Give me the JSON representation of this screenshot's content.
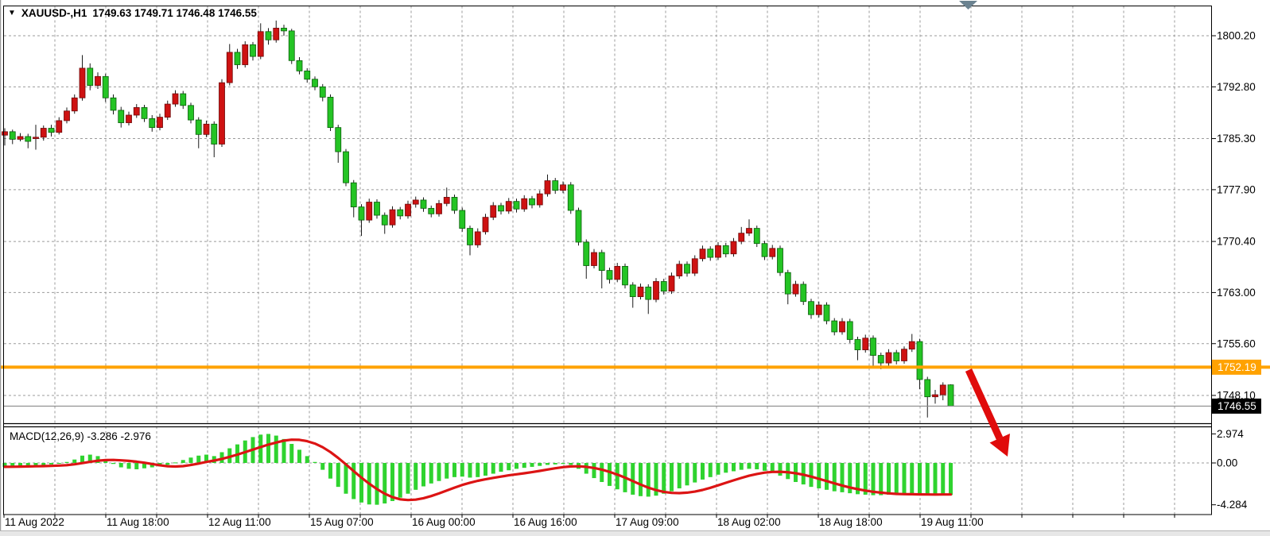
{
  "window": {
    "title_symbol": "XAUUSD-,H1",
    "title_quote": "1749.63 1749.71 1746.48 1746.55",
    "macd_label": "MACD(12,26,9) -3.286 -2.976"
  },
  "chart_data": {
    "type": "candlestick",
    "symbol": "XAUUSD-",
    "timeframe": "H1",
    "last_ohlc": {
      "open": 1749.63,
      "high": 1749.71,
      "low": 1746.48,
      "close": 1746.55
    },
    "price_axis_ticks": [
      1800.2,
      1792.8,
      1785.3,
      1777.9,
      1770.4,
      1763.0,
      1755.6,
      1748.1
    ],
    "time_labels": [
      "11 Aug 2022",
      "11 Aug 18:00",
      "12 Aug 11:00",
      "15 Aug 07:00",
      "16 Aug 00:00",
      "16 Aug 16:00",
      "17 Aug 09:00",
      "18 Aug 02:00",
      "18 Aug 18:00",
      "19 Aug 11:00"
    ],
    "horizontal_line_price": "1752.19",
    "current_price": "1746.55",
    "grid_on": true,
    "bars": [
      [
        1785.8,
        1786.8,
        1784.3,
        1786.3
      ],
      [
        1786.3,
        1786.6,
        1784.5,
        1785.2
      ],
      [
        1785.2,
        1786.1,
        1784.9,
        1785.6
      ],
      [
        1785.6,
        1786.0,
        1783.9,
        1784.9
      ],
      [
        1785.3,
        1787.3,
        1783.7,
        1785.5
      ],
      [
        1785.5,
        1787.2,
        1785.0,
        1786.8
      ],
      [
        1786.8,
        1787.3,
        1785.6,
        1786.2
      ],
      [
        1786.2,
        1788.4,
        1785.9,
        1787.9
      ],
      [
        1787.9,
        1789.8,
        1787.5,
        1789.3
      ],
      [
        1789.3,
        1791.7,
        1788.9,
        1791.2
      ],
      [
        1791.2,
        1797.4,
        1790.8,
        1795.5
      ],
      [
        1795.5,
        1796.2,
        1792.3,
        1793.0
      ],
      [
        1793.0,
        1794.9,
        1792.5,
        1794.3
      ],
      [
        1794.3,
        1794.7,
        1790.6,
        1791.2
      ],
      [
        1791.2,
        1791.7,
        1788.8,
        1789.4
      ],
      [
        1789.4,
        1789.9,
        1786.9,
        1787.6
      ],
      [
        1787.6,
        1789.2,
        1787.2,
        1788.7
      ],
      [
        1788.7,
        1790.3,
        1788.3,
        1789.8
      ],
      [
        1789.8,
        1790.2,
        1787.7,
        1788.2
      ],
      [
        1788.2,
        1788.7,
        1786.3,
        1786.9
      ],
      [
        1786.9,
        1788.9,
        1786.5,
        1788.4
      ],
      [
        1788.4,
        1790.8,
        1788.0,
        1790.3
      ],
      [
        1790.3,
        1792.3,
        1789.9,
        1791.8
      ],
      [
        1791.8,
        1792.2,
        1789.6,
        1790.1
      ],
      [
        1790.1,
        1790.5,
        1787.5,
        1788.0
      ],
      [
        1788.0,
        1788.4,
        1783.9,
        1785.9
      ],
      [
        1785.9,
        1787.9,
        1785.5,
        1787.4
      ],
      [
        1787.4,
        1787.8,
        1782.6,
        1784.5
      ],
      [
        1784.5,
        1793.9,
        1784.1,
        1793.4
      ],
      [
        1793.4,
        1799.0,
        1793.0,
        1797.8
      ],
      [
        1797.8,
        1798.3,
        1795.4,
        1796.0
      ],
      [
        1796.0,
        1799.4,
        1795.6,
        1798.9
      ],
      [
        1798.9,
        1799.3,
        1796.6,
        1797.2
      ],
      [
        1797.2,
        1802.0,
        1796.8,
        1800.8
      ],
      [
        1800.8,
        1801.3,
        1798.9,
        1799.6
      ],
      [
        1799.6,
        1802.4,
        1799.2,
        1801.3
      ],
      [
        1801.3,
        1801.8,
        1800.2,
        1800.9
      ],
      [
        1800.9,
        1801.2,
        1796.1,
        1796.6
      ],
      [
        1796.6,
        1797.1,
        1794.6,
        1795.1
      ],
      [
        1795.1,
        1795.5,
        1793.4,
        1793.9
      ],
      [
        1793.9,
        1794.3,
        1792.3,
        1792.8
      ],
      [
        1792.8,
        1793.2,
        1790.7,
        1791.3
      ],
      [
        1791.3,
        1791.7,
        1786.4,
        1786.9
      ],
      [
        1786.9,
        1787.3,
        1781.8,
        1783.4
      ],
      [
        1783.4,
        1783.8,
        1778.4,
        1778.9
      ],
      [
        1778.9,
        1779.3,
        1773.9,
        1775.4
      ],
      [
        1775.4,
        1775.8,
        1771.2,
        1773.5
      ],
      [
        1773.5,
        1776.6,
        1773.1,
        1776.1
      ],
      [
        1776.1,
        1776.5,
        1773.7,
        1774.2
      ],
      [
        1774.2,
        1774.6,
        1771.5,
        1772.8
      ],
      [
        1772.8,
        1775.5,
        1772.4,
        1775.0
      ],
      [
        1775.0,
        1775.4,
        1773.6,
        1774.1
      ],
      [
        1774.1,
        1776.3,
        1773.7,
        1775.8
      ],
      [
        1775.8,
        1776.9,
        1775.3,
        1776.4
      ],
      [
        1776.4,
        1776.8,
        1774.7,
        1775.2
      ],
      [
        1775.2,
        1775.6,
        1773.9,
        1774.4
      ],
      [
        1774.4,
        1776.4,
        1774.0,
        1775.9
      ],
      [
        1775.9,
        1778.2,
        1775.5,
        1776.8
      ],
      [
        1776.8,
        1777.2,
        1774.4,
        1774.9
      ],
      [
        1774.9,
        1775.3,
        1771.8,
        1772.3
      ],
      [
        1772.3,
        1772.7,
        1768.4,
        1769.9
      ],
      [
        1769.9,
        1772.3,
        1769.5,
        1771.8
      ],
      [
        1771.8,
        1774.4,
        1771.4,
        1773.9
      ],
      [
        1773.9,
        1776.1,
        1773.5,
        1775.6
      ],
      [
        1775.6,
        1776.0,
        1774.3,
        1774.8
      ],
      [
        1774.8,
        1776.7,
        1774.4,
        1776.2
      ],
      [
        1776.2,
        1776.6,
        1774.6,
        1775.1
      ],
      [
        1775.1,
        1777.1,
        1774.7,
        1776.6
      ],
      [
        1776.6,
        1777.0,
        1775.2,
        1775.7
      ],
      [
        1775.7,
        1777.8,
        1775.3,
        1777.3
      ],
      [
        1777.3,
        1780.1,
        1776.9,
        1779.2
      ],
      [
        1779.2,
        1779.6,
        1777.3,
        1777.8
      ],
      [
        1777.8,
        1779.1,
        1777.4,
        1778.6
      ],
      [
        1778.6,
        1779.0,
        1774.4,
        1774.9
      ],
      [
        1774.9,
        1775.3,
        1769.8,
        1770.3
      ],
      [
        1770.3,
        1770.7,
        1765.0,
        1766.9
      ],
      [
        1766.9,
        1769.3,
        1766.5,
        1768.8
      ],
      [
        1768.8,
        1769.2,
        1763.6,
        1766.2
      ],
      [
        1766.2,
        1766.6,
        1764.3,
        1764.9
      ],
      [
        1764.9,
        1767.3,
        1764.5,
        1766.8
      ],
      [
        1766.8,
        1767.2,
        1763.6,
        1764.1
      ],
      [
        1764.1,
        1764.5,
        1760.8,
        1762.4
      ],
      [
        1762.4,
        1764.3,
        1762.0,
        1763.8
      ],
      [
        1763.8,
        1764.2,
        1759.9,
        1762.0
      ],
      [
        1762.0,
        1765.1,
        1761.6,
        1764.6
      ],
      [
        1764.6,
        1765.0,
        1762.7,
        1763.2
      ],
      [
        1763.2,
        1765.9,
        1762.8,
        1765.4
      ],
      [
        1765.4,
        1767.6,
        1765.0,
        1767.1
      ],
      [
        1767.1,
        1767.5,
        1765.3,
        1765.8
      ],
      [
        1765.8,
        1768.4,
        1765.4,
        1767.9
      ],
      [
        1767.9,
        1769.8,
        1767.5,
        1769.3
      ],
      [
        1769.3,
        1769.7,
        1767.6,
        1768.1
      ],
      [
        1768.1,
        1770.3,
        1767.7,
        1769.8
      ],
      [
        1769.8,
        1770.2,
        1768.1,
        1768.6
      ],
      [
        1768.6,
        1770.9,
        1768.2,
        1770.4
      ],
      [
        1770.4,
        1772.5,
        1770.0,
        1771.6
      ],
      [
        1771.6,
        1773.6,
        1771.2,
        1772.3
      ],
      [
        1772.3,
        1772.7,
        1769.6,
        1770.1
      ],
      [
        1770.1,
        1770.5,
        1767.7,
        1768.2
      ],
      [
        1768.2,
        1769.9,
        1767.8,
        1769.4
      ],
      [
        1769.4,
        1769.8,
        1765.4,
        1765.9
      ],
      [
        1765.9,
        1766.3,
        1761.3,
        1762.8
      ],
      [
        1762.8,
        1764.7,
        1762.4,
        1764.2
      ],
      [
        1764.2,
        1764.6,
        1761.2,
        1761.7
      ],
      [
        1761.7,
        1762.1,
        1759.2,
        1759.8
      ],
      [
        1759.8,
        1761.7,
        1759.4,
        1761.2
      ],
      [
        1761.2,
        1761.6,
        1758.4,
        1758.9
      ],
      [
        1758.9,
        1759.3,
        1756.8,
        1757.3
      ],
      [
        1757.3,
        1759.3,
        1756.9,
        1758.8
      ],
      [
        1758.8,
        1759.2,
        1755.7,
        1756.2
      ],
      [
        1756.2,
        1756.6,
        1753.2,
        1754.7
      ],
      [
        1754.7,
        1756.9,
        1754.3,
        1756.4
      ],
      [
        1756.4,
        1756.8,
        1752.1,
        1753.9
      ],
      [
        1753.9,
        1754.3,
        1751.9,
        1752.8
      ],
      [
        1752.8,
        1754.8,
        1752.4,
        1754.3
      ],
      [
        1754.3,
        1754.7,
        1752.6,
        1753.1
      ],
      [
        1753.1,
        1755.2,
        1752.7,
        1754.8
      ],
      [
        1754.8,
        1757.0,
        1754.4,
        1755.9
      ],
      [
        1755.9,
        1756.3,
        1749.0,
        1750.4
      ],
      [
        1750.4,
        1750.8,
        1744.9,
        1747.9
      ],
      [
        1747.9,
        1748.9,
        1746.9,
        1748.2
      ],
      [
        1748.2,
        1750.0,
        1747.4,
        1749.6
      ],
      [
        1749.63,
        1749.71,
        1746.48,
        1746.55
      ]
    ],
    "macd": {
      "params": "12,26,9",
      "value_label": "-3.286",
      "signal_label": "-2.976",
      "axis_ticks": [
        "2.974",
        "0.00",
        "-4.284"
      ],
      "values": [
        -0.4,
        -0.38,
        -0.35,
        -0.3,
        -0.28,
        -0.22,
        -0.15,
        -0.05,
        0.1,
        0.35,
        0.75,
        0.85,
        0.7,
        0.3,
        -0.1,
        -0.45,
        -0.6,
        -0.65,
        -0.55,
        -0.45,
        -0.35,
        -0.2,
        0.05,
        0.3,
        0.55,
        0.75,
        0.85,
        0.7,
        1.1,
        1.5,
        1.9,
        2.3,
        2.65,
        2.9,
        2.97,
        2.8,
        2.45,
        1.95,
        1.35,
        0.7,
        0.1,
        -0.7,
        -1.6,
        -2.45,
        -3.15,
        -3.7,
        -4.05,
        -4.25,
        -4.28,
        -4.15,
        -3.9,
        -3.55,
        -3.15,
        -2.75,
        -2.4,
        -2.1,
        -1.85,
        -1.6,
        -1.45,
        -1.4,
        -1.5,
        -1.45,
        -1.3,
        -1.1,
        -0.9,
        -0.75,
        -0.6,
        -0.5,
        -0.4,
        -0.3,
        -0.2,
        -0.15,
        -0.1,
        -0.2,
        -0.6,
        -1.1,
        -1.55,
        -1.95,
        -2.35,
        -2.7,
        -3.0,
        -3.25,
        -3.4,
        -3.45,
        -3.35,
        -3.15,
        -2.9,
        -2.6,
        -2.3,
        -2.0,
        -1.7,
        -1.45,
        -1.2,
        -1.0,
        -0.85,
        -0.7,
        -0.6,
        -0.65,
        -0.8,
        -1.0,
        -1.3,
        -1.65,
        -1.95,
        -2.2,
        -2.45,
        -2.6,
        -2.75,
        -2.9,
        -3.0,
        -3.1,
        -3.2,
        -3.25,
        -3.3,
        -3.3,
        -3.25,
        -3.2,
        -3.15,
        -3.1,
        -3.2,
        -3.3,
        -3.3,
        -3.28,
        -3.286
      ]
    },
    "colors": {
      "up_candle": "#ce1212",
      "down_candle": "#24c424",
      "wick": "#1a1a1a",
      "macd_histogram": "#2fd32f",
      "macd_signal_line": "#dc1414",
      "horizontal_line": "#ffa200",
      "current_price_line": "#8a8a8a",
      "current_price_badge": "#000000",
      "grid": "#9b9b9b",
      "arrow": "#e00b0b",
      "shift_marker": "#6b8290"
    },
    "annotations": {
      "red_arrow": "down-right arrow drawn from broken orange support line toward MACD pane",
      "shift_marker": "gray triangle chart-shift marker at top"
    }
  }
}
